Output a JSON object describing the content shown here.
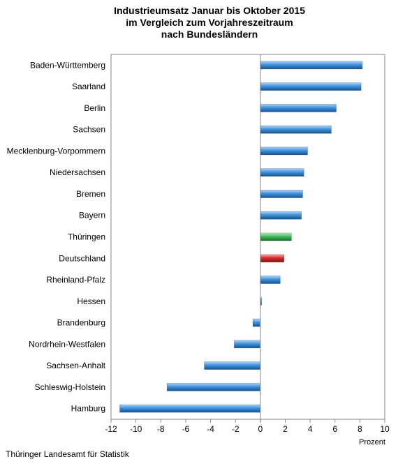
{
  "chart_data": {
    "type": "bar",
    "orientation": "horizontal",
    "title_lines": [
      "Industrieumsatz Januar bis Oktober 2015",
      "im Vergleich zum Vorjahreszeitraum",
      "nach Bundesländern"
    ],
    "xlabel": "Prozent",
    "ylabel": "",
    "xlim": [
      -12,
      10
    ],
    "xticks": [
      -12,
      -10,
      -8,
      -6,
      -4,
      -2,
      0,
      2,
      4,
      6,
      8,
      10
    ],
    "grid": false,
    "legend": "none",
    "categories": [
      "Baden-Württemberg",
      "Saarland",
      "Berlin",
      "Sachsen",
      "Mecklenburg-Vorpommern",
      "Niedersachsen",
      "Bremen",
      "Bayern",
      "Thüringen",
      "Deutschland",
      "Rheinland-Pfalz",
      "Hessen",
      "Brandenburg",
      "Nordrhein-Westfalen",
      "Sachsen-Anhalt",
      "Schleswig-Holstein",
      "Hamburg"
    ],
    "values": [
      8.2,
      8.1,
      6.1,
      5.7,
      3.8,
      3.5,
      3.4,
      3.3,
      2.5,
      1.9,
      1.6,
      0.1,
      -0.6,
      -2.1,
      -4.5,
      -7.5,
      -11.3
    ],
    "colors": {
      "default": "#2f86d6",
      "Thüringen": "#2fb14a",
      "Deutschland": "#d61c1c"
    }
  },
  "footer": "Thüringer Landesamt für Statistik"
}
